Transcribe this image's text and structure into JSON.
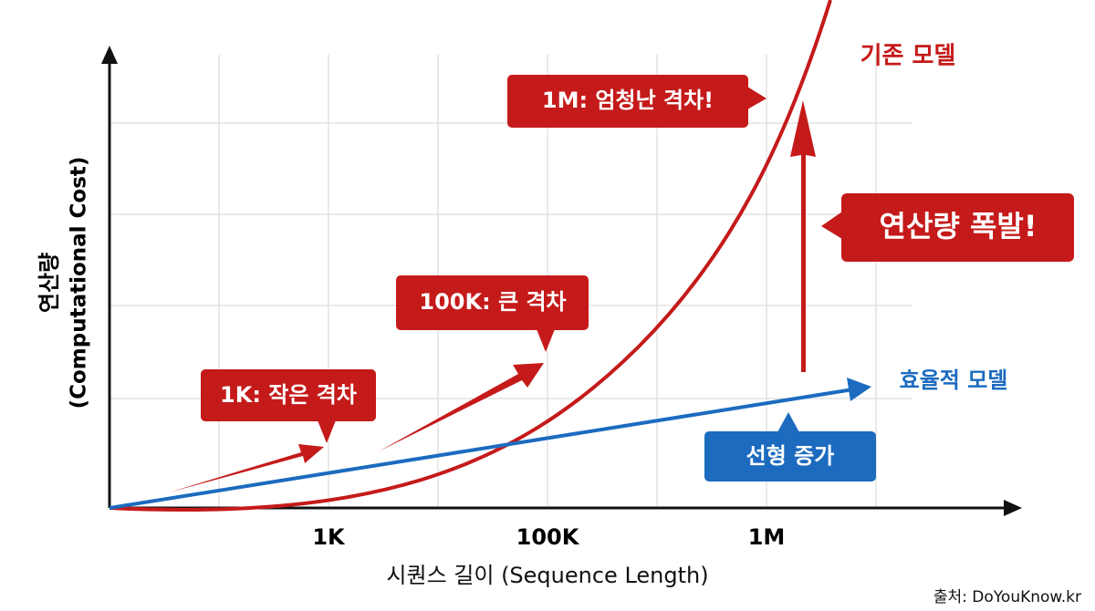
{
  "axes": {
    "y_label": "연산량",
    "y_label_en": "(Computational Cost)",
    "x_label": "시퀀스 길이 (Sequence Length)",
    "x_ticks": [
      "1K",
      "100K",
      "1M"
    ]
  },
  "series": {
    "baseline": "기존 모델",
    "efficient": "효율적 모델"
  },
  "callouts": [
    "1K: 작은 격차",
    "100K: 큰 격차",
    "1M: 엄청난 격차!",
    "연산량 폭발!",
    "선형 증가"
  ],
  "source": "출처: DoYouKnow.kr"
}
